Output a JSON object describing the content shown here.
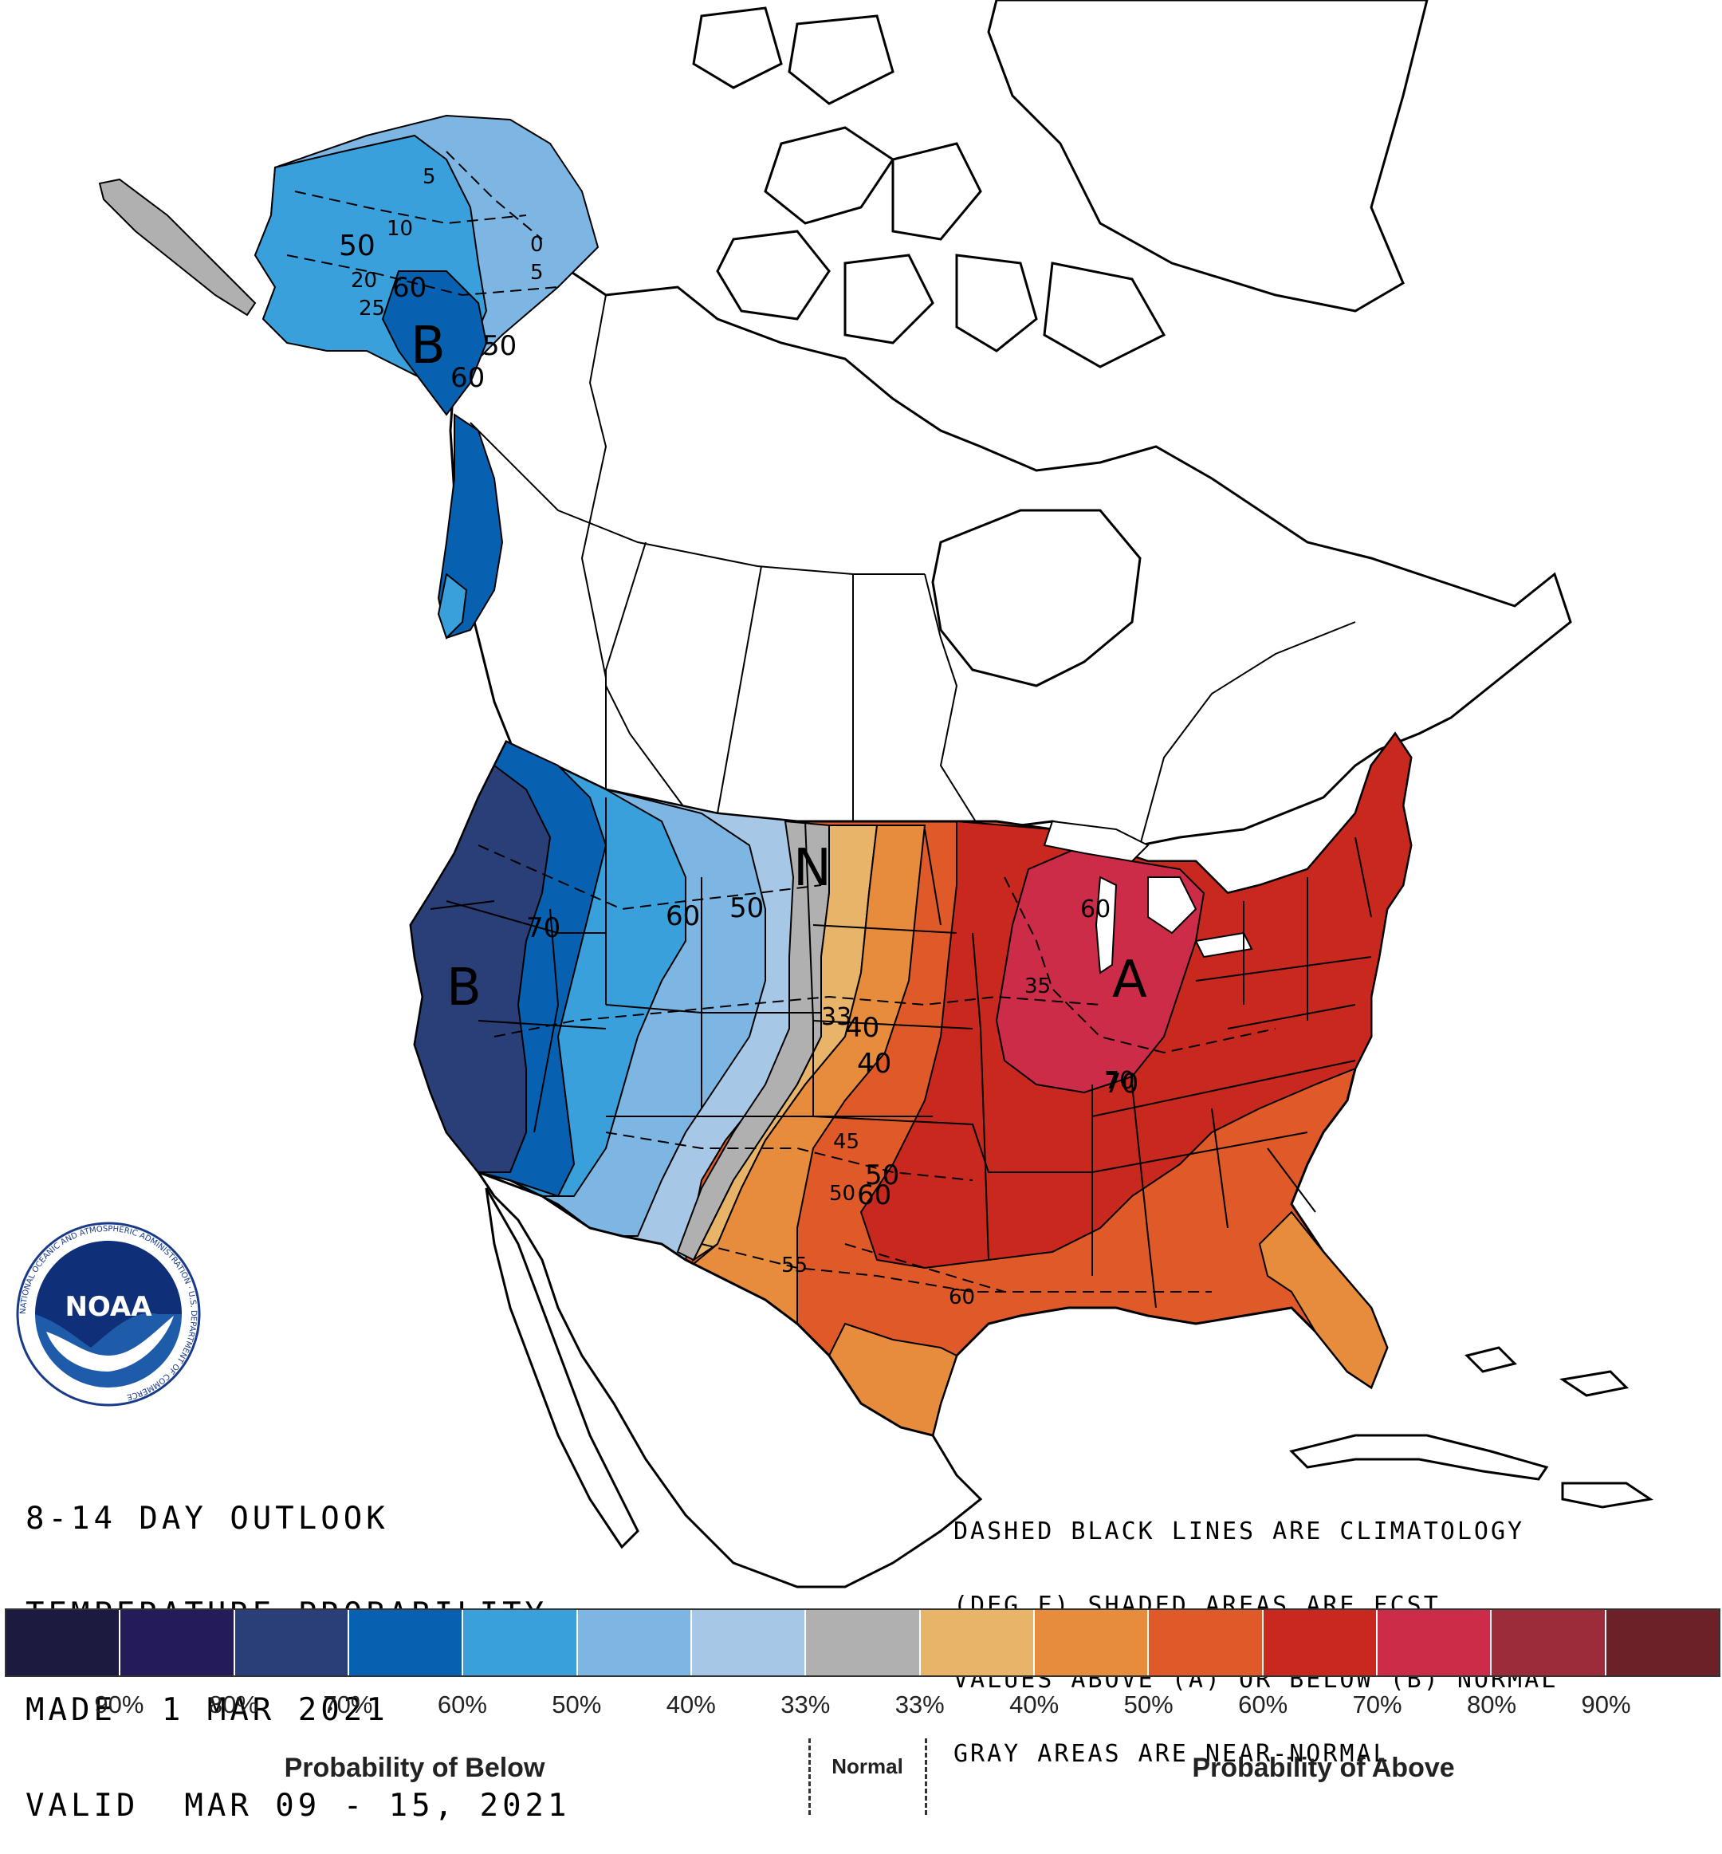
{
  "header": {
    "line1": "8-14 DAY OUTLOOK",
    "line2": "TEMPERATURE PROBABILITY",
    "line3": "MADE  1 MAR 2021",
    "line4": "VALID  MAR 09 - 15, 2021"
  },
  "notes": {
    "line1": "DASHED BLACK LINES ARE CLIMATOLOGY",
    "line2": "(DEG F) SHADED AREAS ARE FCST",
    "line3": "VALUES ABOVE (A) OR BELOW (B) NORMAL",
    "line4": "GRAY AREAS ARE NEAR-NORMAL"
  },
  "logo": {
    "text": "NOAA",
    "ring_text": "NATIONAL OCEANIC AND ATMOSPHERIC ADMINISTRATION · U.S. DEPARTMENT OF COMMERCE"
  },
  "map_labels": {
    "below_alaska": "B",
    "below_west": "B",
    "above_east": "A",
    "normal_plains": "N",
    "contours": [
      "50",
      "10",
      "5",
      "0",
      "5",
      "20",
      "60",
      "25",
      "50",
      "60",
      "70",
      "60",
      "50",
      "40",
      "33",
      "40",
      "50",
      "60",
      "70",
      "60",
      "45",
      "50",
      "55",
      "60",
      "35",
      "70"
    ]
  },
  "legend": {
    "colors": [
      "#1c1a3f",
      "#241c5a",
      "#2a3e78",
      "#0861b0",
      "#3aa0dc",
      "#7db6e3",
      "#a6c8e6",
      "#b0b0b0",
      "#e8b46a",
      "#e68c3c",
      "#df5a28",
      "#c8281e",
      "#cc2c48",
      "#9c2c3a",
      "#6c2028"
    ],
    "labels": [
      "90%",
      "80%",
      "70%",
      "60%",
      "50%",
      "40%",
      "33%",
      "33%",
      "40%",
      "50%",
      "60%",
      "70%",
      "80%",
      "90%"
    ],
    "below_caption": "Probability of Below",
    "normal_caption": "Normal",
    "above_caption": "Probability of Above"
  }
}
